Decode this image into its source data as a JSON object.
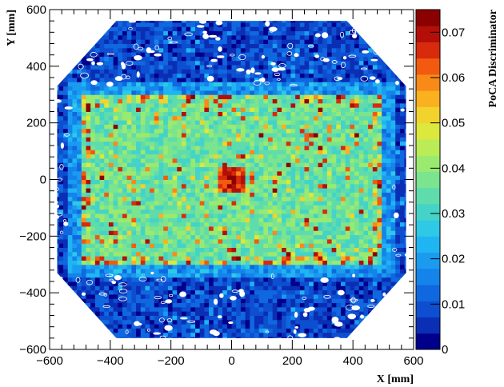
{
  "chart_data": {
    "type": "heatmap",
    "title": "",
    "xlabel": "X [mm]",
    "ylabel": "Y [mm]",
    "zlabel": "PoCA Discriminator",
    "xlim": [
      -600,
      600
    ],
    "ylim": [
      -600,
      600
    ],
    "zlim": [
      0,
      0.075
    ],
    "x_ticks": [
      "-600",
      "-400",
      "-200",
      "0",
      "200",
      "400",
      "600"
    ],
    "y_ticks": [
      "-600",
      "-400",
      "-200",
      "0",
      "200",
      "400",
      "600"
    ],
    "z_ticks": [
      "0",
      "0.01",
      "0.02",
      "0.03",
      "0.04",
      "0.05",
      "0.06",
      "0.07"
    ],
    "colormap": [
      "#00008b",
      "#0a2eb4",
      "#0d4fd0",
      "#1068e0",
      "#1483ea",
      "#1a9bf0",
      "#1fb5f3",
      "#2ec9e6",
      "#45d3c8",
      "#5edcab",
      "#7ae48e",
      "#9aea70",
      "#bcec55",
      "#dce83c",
      "#f2d22c",
      "#f9b120",
      "#f98a18",
      "#f25a10",
      "#d82a0c",
      "#b30f08",
      "#8b0000"
    ],
    "background_color": "#ffffff",
    "regions": [
      {
        "name": "outer detector octagon",
        "x": [
          -570,
          570
        ],
        "y": [
          -570,
          570
        ],
        "value": 0.008
      },
      {
        "name": "scattering block",
        "x": [
          -500,
          500
        ],
        "y": [
          -300,
          300
        ],
        "value": 0.037
      },
      {
        "name": "central high-Z object",
        "x": [
          -40,
          40
        ],
        "y": [
          -40,
          40
        ],
        "value": 0.07
      }
    ],
    "grid": false,
    "colorbar_position": "right"
  }
}
